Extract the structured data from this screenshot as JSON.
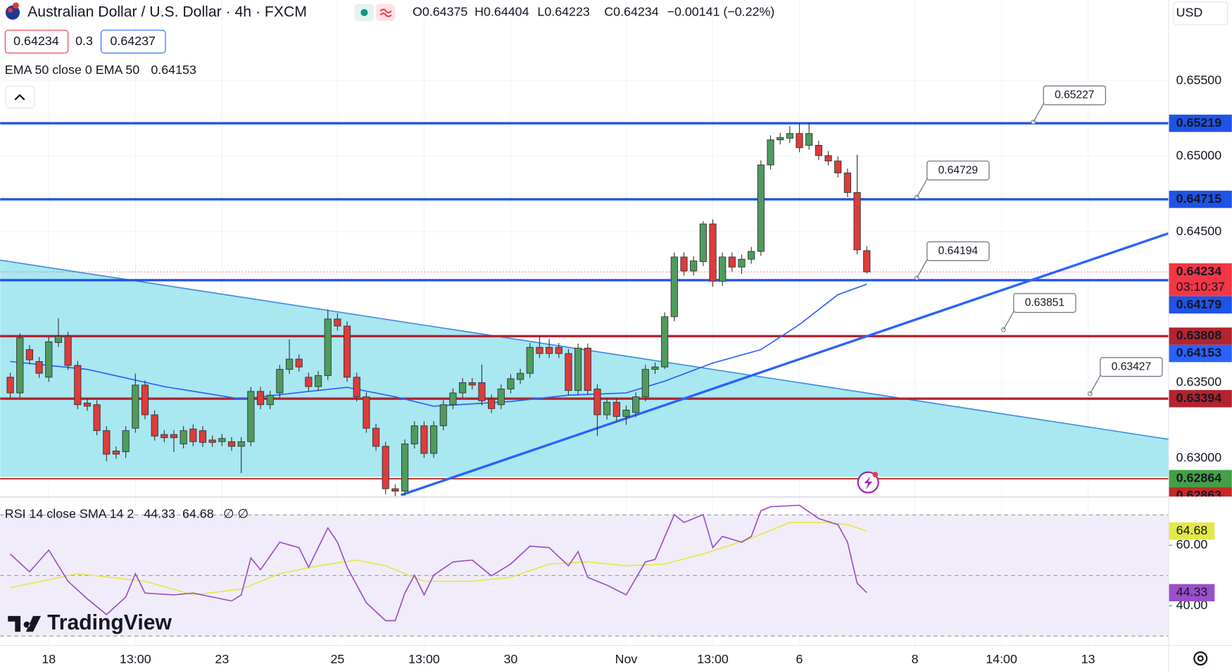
{
  "header": {
    "symbol": "Australian Dollar / U.S. Dollar · 4h · FXCM",
    "ohlc": [
      "O0.64375",
      "H0.64404",
      "L0.64223",
      "C0.64234",
      "−0.00141 (−0.22%)"
    ],
    "spread": "0.3",
    "buy": "0.64237",
    "indicator": "EMA 50 close 0 EMA 50",
    "currency": "USD",
    "logo": "TradingView"
  },
  "chart_data": [
    {
      "type": "candlestick",
      "up_color": "#4f9b5e",
      "down_color": "#dc3c3c",
      "xlim": [
        -1.06,
        120.33
      ],
      "ylim": [
        0.62745,
        0.66036
      ],
      "xticks": [
        {
          "value": 4,
          "label": "18"
        },
        {
          "value": 13,
          "label": "13:00"
        },
        {
          "value": 22,
          "label": "23"
        },
        {
          "value": 34,
          "label": "25"
        },
        {
          "value": 43,
          "label": "13:00"
        },
        {
          "value": 52,
          "label": "30"
        },
        {
          "value": 64,
          "label": "Nov"
        },
        {
          "value": 73,
          "label": "13:00"
        },
        {
          "value": 82,
          "label": "6"
        },
        {
          "value": 94,
          "label": "8"
        },
        {
          "value": 103,
          "label": "14:00"
        },
        {
          "value": 112,
          "label": "13"
        }
      ],
      "yticks": [
        {
          "value": 0.63,
          "label": "0.63000"
        },
        {
          "value": 0.635,
          "label": "0.63500"
        },
        {
          "value": 0.645,
          "label": "0.64500"
        },
        {
          "value": 0.65,
          "label": "0.65000"
        },
        {
          "value": 0.655,
          "label": "0.65500"
        }
      ],
      "grid": true,
      "open": [
        0.63536,
        0.63432,
        0.63719,
        0.6364,
        0.63536,
        0.63766,
        0.63807,
        0.63614,
        0.63365,
        0.63354,
        0.63182,
        0.63047,
        0.63042,
        0.63198,
        0.63484,
        0.63287,
        0.63156,
        0.63156,
        0.63094,
        0.63193,
        0.63182,
        0.6312,
        0.63109,
        0.63109,
        0.63078,
        0.63109,
        0.63442,
        0.63354,
        0.63432,
        0.63588,
        0.63656,
        0.63536,
        0.63474,
        0.63547,
        0.63922,
        0.63875,
        0.63536,
        0.63406,
        0.63198,
        0.63078,
        0.62797,
        0.62781,
        0.63094,
        0.63214,
        0.63031,
        0.63214,
        0.63354,
        0.63432,
        0.635,
        0.635,
        0.63391,
        0.63354,
        0.63458,
        0.63521,
        0.63562,
        0.63734,
        0.63734,
        0.63734,
        0.63693,
        0.63448,
        0.63729,
        0.63458,
        0.63287,
        0.6337,
        0.63276,
        0.63302,
        0.63406,
        0.63588,
        0.63604,
        0.63937,
        0.64333,
        0.6424,
        0.64302,
        0.64552,
        0.64172,
        0.64333,
        0.64266,
        0.64318,
        0.6437,
        0.64943,
        0.65109,
        0.6512,
        0.65151,
        0.65073,
        0.65073,
        0.65005,
        0.64969,
        0.6489,
        0.6476,
        0.64375
      ],
      "high": [
        0.63566,
        0.63827,
        0.63749,
        0.6367,
        0.63801,
        0.63927,
        0.63837,
        0.63644,
        0.63395,
        0.63384,
        0.63212,
        0.63077,
        0.63212,
        0.6356,
        0.63514,
        0.63317,
        0.63186,
        0.63186,
        0.63212,
        0.63223,
        0.63212,
        0.6315,
        0.6316,
        0.63139,
        0.63139,
        0.63472,
        0.63472,
        0.63447,
        0.63618,
        0.63786,
        0.63686,
        0.63566,
        0.63577,
        0.63985,
        0.6396,
        0.63905,
        0.63566,
        0.63436,
        0.63228,
        0.63108,
        0.62827,
        0.63124,
        0.63244,
        0.63244,
        0.63244,
        0.63384,
        0.63462,
        0.6353,
        0.6353,
        0.6362,
        0.63421,
        0.63488,
        0.63556,
        0.63592,
        0.63764,
        0.6381,
        0.6379,
        0.63764,
        0.63723,
        0.63759,
        0.63759,
        0.63488,
        0.634,
        0.634,
        0.63348,
        0.63436,
        0.63618,
        0.63634,
        0.63967,
        0.64363,
        0.64363,
        0.64337,
        0.6457,
        0.64582,
        0.64363,
        0.64363,
        0.64348,
        0.644,
        0.64973,
        0.65139,
        0.65155,
        0.652,
        0.6522,
        0.65225,
        0.65103,
        0.65035,
        0.64999,
        0.6492,
        0.6501,
        0.64404
      ],
      "low": [
        0.63402,
        0.63402,
        0.63621,
        0.63532,
        0.63506,
        0.63736,
        0.63584,
        0.63324,
        0.63314,
        0.63152,
        0.6298,
        0.62996,
        0.63,
        0.63168,
        0.63257,
        0.63116,
        0.63105,
        0.6304,
        0.63064,
        0.63079,
        0.63074,
        0.63074,
        0.63079,
        0.63048,
        0.62901,
        0.63079,
        0.63324,
        0.63324,
        0.63402,
        0.63558,
        0.63574,
        0.63444,
        0.63444,
        0.63517,
        0.63845,
        0.63506,
        0.63376,
        0.63168,
        0.63048,
        0.6276,
        0.62745,
        0.62751,
        0.63064,
        0.63001,
        0.63001,
        0.63184,
        0.63324,
        0.63402,
        0.63454,
        0.6335,
        0.63298,
        0.63324,
        0.63428,
        0.63491,
        0.63532,
        0.63663,
        0.63663,
        0.63663,
        0.63418,
        0.63418,
        0.63418,
        0.63146,
        0.63257,
        0.63246,
        0.6322,
        0.63272,
        0.63376,
        0.63558,
        0.6359,
        0.63907,
        0.6421,
        0.6421,
        0.64272,
        0.64135,
        0.64142,
        0.64236,
        0.6422,
        0.64288,
        0.6434,
        0.64913,
        0.65079,
        0.6509,
        0.65027,
        0.65043,
        0.64975,
        0.64939,
        0.6486,
        0.6473,
        0.6435,
        0.64223
      ],
      "close": [
        0.63432,
        0.63797,
        0.63651,
        0.63562,
        0.63771,
        0.63807,
        0.63614,
        0.63354,
        0.63344,
        0.63182,
        0.63026,
        0.63026,
        0.63182,
        0.63484,
        0.63287,
        0.63146,
        0.63135,
        0.63135,
        0.63182,
        0.63109,
        0.63104,
        0.63104,
        0.6313,
        0.63078,
        0.63109,
        0.63442,
        0.63354,
        0.63417,
        0.63588,
        0.63656,
        0.63604,
        0.63474,
        0.63547,
        0.63922,
        0.63875,
        0.63536,
        0.63406,
        0.63198,
        0.63078,
        0.62797,
        0.62781,
        0.63094,
        0.63214,
        0.63031,
        0.63214,
        0.63354,
        0.63432,
        0.635,
        0.63484,
        0.6338,
        0.63328,
        0.63458,
        0.63526,
        0.63562,
        0.63734,
        0.63693,
        0.63693,
        0.63693,
        0.63448,
        0.63729,
        0.63448,
        0.63287,
        0.6337,
        0.63276,
        0.63318,
        0.63406,
        0.63588,
        0.63604,
        0.63937,
        0.64333,
        0.6424,
        0.64307,
        0.64552,
        0.64172,
        0.64333,
        0.64266,
        0.64318,
        0.6437,
        0.64943,
        0.65109,
        0.65125,
        0.65151,
        0.65057,
        0.65151,
        0.65005,
        0.64969,
        0.6489,
        0.6476,
        0.6438,
        0.64234
      ],
      "last_color": "#f23645",
      "countdown": "03:10:37",
      "ema": {
        "color": "#2962ff",
        "x": [
          0,
          8,
          16,
          24,
          31,
          35,
          40,
          44,
          52,
          58,
          64,
          68,
          73,
          78,
          82,
          86,
          89
        ],
        "values": [
          0.6364,
          0.63588,
          0.63474,
          0.63391,
          0.63442,
          0.63469,
          0.63406,
          0.63344,
          0.63375,
          0.63417,
          0.63432,
          0.6351,
          0.6363,
          0.63719,
          0.63885,
          0.64083,
          0.64153
        ]
      },
      "hlines": [
        {
          "price": 0.65219,
          "color": "#1e53e5"
        },
        {
          "price": 0.64715,
          "color": "#1e53e5"
        },
        {
          "price": 0.64179,
          "color": "#1e53e5"
        },
        {
          "price": 0.63808,
          "color": "#b2242f"
        },
        {
          "price": 0.63394,
          "color": "#b2242f"
        },
        {
          "price": 0.62864,
          "color": "#43a047"
        },
        {
          "price": 0.62863,
          "color": "#c62828"
        }
      ],
      "zone": {
        "x": [
          -1.06,
          120.33
        ],
        "top": [
          0.64312,
          0.63125
        ],
        "bottom": 0.62875,
        "fill": "#a9e7f1",
        "stroke": "#3d8fe0"
      },
      "trendlines": [
        {
          "x": [
            40.6,
            120.33
          ],
          "y": [
            0.62755,
            0.64489
          ],
          "color": "#2962ff"
        }
      ],
      "callouts": [
        {
          "x": 106.3,
          "value": 0.65227
        },
        {
          "x": 94.2,
          "value": 0.64729
        },
        {
          "x": 94.2,
          "value": 0.64194
        },
        {
          "x": 103.2,
          "value": 0.63851
        },
        {
          "x": 112.2,
          "value": 0.63427
        }
      ]
    },
    {
      "type": "line",
      "legend": "RSI 14 close SMA 14 2",
      "legend_tail": "∅ ∅",
      "ylim": [
        27.3,
        75.8
      ],
      "yticks": [
        {
          "value": 40,
          "label": "40.00"
        },
        {
          "value": 60,
          "label": "60.00"
        }
      ],
      "levels": [
        70,
        50,
        30
      ],
      "band_color": "#f1ecf9",
      "series": [
        {
          "color": "#9a50c8",
          "label_color": "#ffffff",
          "x": [
            0,
            2,
            4,
            6,
            8,
            10,
            12,
            13,
            14,
            17,
            19,
            23,
            24,
            25,
            26,
            28,
            30,
            31,
            33,
            34,
            35,
            37,
            39,
            40,
            41,
            42,
            43,
            44,
            46,
            48,
            50,
            52,
            54,
            56,
            58,
            59,
            60,
            62,
            64,
            66,
            67,
            69,
            70,
            72,
            73,
            74,
            76,
            77,
            78,
            79,
            82,
            84,
            86,
            87,
            88,
            89
          ],
          "values": [
            57.1,
            51.2,
            58.4,
            48.1,
            42.3,
            37.1,
            42.9,
            50.6,
            44.2,
            43.6,
            44.2,
            41.6,
            43.6,
            55.8,
            51.9,
            61.0,
            59.2,
            52.7,
            65.7,
            61.0,
            52.7,
            41.0,
            35.1,
            35.1,
            44.2,
            50.1,
            43.6,
            50.1,
            54.5,
            55.1,
            49.9,
            53.8,
            59.7,
            59.2,
            53.2,
            57.9,
            49.4,
            46.8,
            43.6,
            54.5,
            55.3,
            70.1,
            67.5,
            70.1,
            59.2,
            62.9,
            61.0,
            62.9,
            71.4,
            72.7,
            73.2,
            68.8,
            66.8,
            61.0,
            47.5,
            44.33
          ]
        },
        {
          "color": "#e3e84a",
          "label_color": "#131722",
          "x": [
            0,
            7,
            14,
            19,
            24,
            28,
            32,
            36,
            39,
            43,
            48,
            52,
            56,
            60,
            64,
            68,
            72,
            77,
            81,
            85,
            87,
            89
          ],
          "values": [
            46.0,
            50.6,
            48.1,
            43.6,
            45.5,
            50.6,
            53.2,
            55.1,
            53.2,
            48.1,
            48.1,
            49.4,
            53.8,
            54.5,
            53.2,
            53.8,
            57.1,
            62.3,
            67.5,
            67.5,
            66.8,
            64.68
          ]
        }
      ]
    }
  ]
}
